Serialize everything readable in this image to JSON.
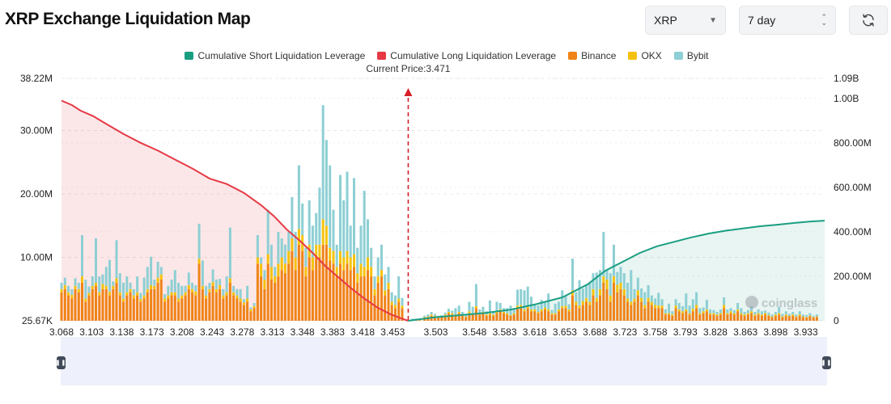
{
  "page": {
    "title": "XRP Exchange Liquidation Map"
  },
  "controls": {
    "coin_select": {
      "value": "XRP"
    },
    "range_select": {
      "value": "7 day"
    },
    "refresh_icon": "refresh-icon"
  },
  "legend": [
    {
      "label": "Cumulative Short Liquidation Leverage",
      "color": "#1a9e82"
    },
    {
      "label": "Cumulative Long Liquidation Leverage",
      "color": "#e53945"
    },
    {
      "label": "Binance",
      "color": "#f08318"
    },
    {
      "label": "OKX",
      "color": "#f5c20b"
    },
    {
      "label": "Bybit",
      "color": "#8dcfd4"
    }
  ],
  "watermark": "coinglass",
  "chart_data": {
    "type": "bar",
    "current_price_label": "Current Price:3.471",
    "current_price": 3.471,
    "x_tick_labels": [
      "3.068",
      "3.103",
      "3.138",
      "3.173",
      "3.208",
      "3.243",
      "3.278",
      "3.313",
      "3.348",
      "3.383",
      "3.418",
      "3.453",
      "3.503",
      "3.548",
      "3.583",
      "3.618",
      "3.653",
      "3.688",
      "3.723",
      "3.758",
      "3.793",
      "3.828",
      "3.863",
      "3.898",
      "3.933"
    ],
    "x_range": [
      3.068,
      3.955
    ],
    "left_axis": {
      "tick_labels": [
        "38.22M",
        "30.00M",
        "20.00M",
        "10.00M",
        "25.67K"
      ],
      "tick_values": [
        38220000,
        30000000,
        20000000,
        10000000,
        25670
      ],
      "range": [
        25670,
        38220000
      ]
    },
    "right_axis": {
      "tick_labels": [
        "1.09B",
        "1.00B",
        "800.00M",
        "600.00M",
        "400.00M",
        "200.00M",
        "0"
      ],
      "tick_values": [
        1090000000,
        1000000000,
        800000000,
        600000000,
        400000000,
        200000000,
        0
      ],
      "range": [
        0,
        1090000000
      ]
    },
    "series_colors": {
      "binance": "#f08318",
      "okx": "#f5c20b",
      "bybit": "#8dcfd4",
      "long": "#e53945",
      "short": "#1a9e82"
    },
    "bars": [
      [
        3.068,
        4.5,
        0.5,
        1.0
      ],
      [
        3.072,
        5.0,
        0.6,
        1.2
      ],
      [
        3.076,
        4.0,
        0.5,
        1.0
      ],
      [
        3.08,
        3.5,
        0.6,
        0.9
      ],
      [
        3.084,
        5.0,
        0.5,
        1.2
      ],
      [
        3.088,
        4.5,
        0.5,
        1.0
      ],
      [
        3.092,
        6.0,
        1.0,
        6.5
      ],
      [
        3.096,
        3.0,
        0.5,
        3.0
      ],
      [
        3.1,
        4.0,
        0.4,
        1.0
      ],
      [
        3.104,
        5.0,
        0.5,
        1.5
      ],
      [
        3.108,
        5.5,
        0.5,
        7.0
      ],
      [
        3.112,
        4.0,
        0.5,
        2.5
      ],
      [
        3.116,
        5.0,
        0.8,
        1.5
      ],
      [
        3.12,
        5.0,
        0.5,
        3.0
      ],
      [
        3.124,
        4.0,
        0.6,
        5.0
      ],
      [
        3.128,
        5.0,
        0.5,
        0.7
      ],
      [
        3.132,
        6.0,
        0.7,
        6.0
      ],
      [
        3.136,
        4.0,
        0.5,
        3.0
      ],
      [
        3.14,
        3.0,
        0.5,
        2.5
      ],
      [
        3.144,
        4.0,
        0.5,
        2.5
      ],
      [
        3.148,
        4.5,
        0.5,
        1.0
      ],
      [
        3.152,
        3.5,
        0.5,
        1.0
      ],
      [
        3.156,
        4.0,
        0.5,
        2.5
      ],
      [
        3.16,
        3.0,
        0.4,
        1.0
      ],
      [
        3.164,
        3.5,
        0.5,
        2.8
      ],
      [
        3.168,
        4.5,
        0.5,
        3.5
      ],
      [
        3.172,
        5.0,
        0.6,
        4.5
      ],
      [
        3.176,
        5.0,
        0.5,
        1.0
      ],
      [
        3.18,
        6.0,
        0.8,
        2.5
      ],
      [
        3.184,
        6.5,
        0.8,
        1.2
      ],
      [
        3.188,
        3.0,
        0.5,
        0.7
      ],
      [
        3.192,
        3.5,
        0.5,
        1.5
      ],
      [
        3.196,
        4.0,
        0.5,
        2.0
      ],
      [
        3.2,
        4.0,
        0.5,
        3.5
      ],
      [
        3.204,
        3.0,
        0.5,
        2.5
      ],
      [
        3.208,
        3.5,
        0.5,
        1.5
      ],
      [
        3.212,
        4.0,
        0.5,
        1.0
      ],
      [
        3.216,
        5.0,
        0.6,
        2.0
      ],
      [
        3.22,
        4.5,
        0.5,
        1.0
      ],
      [
        3.224,
        4.0,
        0.6,
        1.0
      ],
      [
        3.228,
        9.0,
        0.8,
        5.5
      ],
      [
        3.232,
        5.0,
        0.5,
        4.0
      ],
      [
        3.236,
        3.5,
        0.5,
        1.5
      ],
      [
        3.24,
        4.5,
        0.5,
        1.0
      ],
      [
        3.244,
        5.5,
        0.6,
        2.0
      ],
      [
        3.248,
        4.5,
        0.5,
        1.5
      ],
      [
        3.252,
        5.0,
        0.6,
        1.0
      ],
      [
        3.256,
        3.5,
        0.5,
        1.0
      ],
      [
        3.26,
        4.0,
        0.5,
        2.5
      ],
      [
        3.264,
        6.0,
        0.7,
        8.0
      ],
      [
        3.268,
        4.0,
        0.5,
        1.0
      ],
      [
        3.272,
        3.5,
        0.5,
        1.0
      ],
      [
        3.276,
        3.0,
        0.5,
        1.5
      ],
      [
        3.28,
        2.5,
        0.4,
        0.5
      ],
      [
        3.284,
        3.0,
        0.5,
        2.0
      ],
      [
        3.288,
        1.5,
        0.3,
        0.3
      ],
      [
        3.292,
        2.0,
        0.3,
        0.5
      ],
      [
        3.296,
        9.0,
        1.0,
        3.5
      ],
      [
        3.3,
        7.0,
        2.0,
        1.0
      ],
      [
        3.304,
        5.0,
        1.5,
        1.5
      ],
      [
        3.308,
        9.0,
        1.5,
        7.0
      ],
      [
        3.312,
        6.5,
        2.0,
        3.5
      ],
      [
        3.316,
        6.0,
        1.0,
        1.5
      ],
      [
        3.32,
        7.0,
        2.0,
        5.0
      ],
      [
        3.324,
        8.0,
        2.0,
        3.0
      ],
      [
        3.328,
        7.5,
        1.5,
        3.0
      ],
      [
        3.332,
        9.0,
        2.0,
        3.0
      ],
      [
        3.336,
        11.0,
        2.0,
        6.5
      ],
      [
        3.34,
        8.0,
        2.0,
        4.0
      ],
      [
        3.344,
        12.0,
        2.5,
        10.0
      ],
      [
        3.348,
        11.0,
        2.5,
        5.0
      ],
      [
        3.352,
        7.0,
        1.5,
        3.0
      ],
      [
        3.356,
        10.0,
        2.0,
        7.0
      ],
      [
        3.36,
        8.0,
        2.0,
        5.0
      ],
      [
        3.364,
        10.0,
        2.0,
        5.0
      ],
      [
        3.368,
        10.0,
        2.0,
        9.0
      ],
      [
        3.372,
        12.0,
        4.0,
        18.0
      ],
      [
        3.376,
        12.0,
        3.0,
        13.5
      ],
      [
        3.38,
        9.5,
        2.0,
        13.0
      ],
      [
        3.384,
        9.0,
        2.0,
        6.5
      ],
      [
        3.388,
        7.0,
        1.5,
        3.5
      ],
      [
        3.392,
        9.0,
        2.0,
        12.0
      ],
      [
        3.396,
        8.0,
        2.0,
        9.0
      ],
      [
        3.4,
        9.0,
        2.0,
        12.5
      ],
      [
        3.404,
        8.0,
        2.0,
        5.0
      ],
      [
        3.408,
        8.5,
        2.0,
        12.0
      ],
      [
        3.412,
        6.0,
        1.5,
        4.0
      ],
      [
        3.416,
        7.0,
        2.0,
        6.0
      ],
      [
        3.42,
        7.0,
        1.5,
        12.0
      ],
      [
        3.424,
        8.0,
        2.0,
        6.0
      ],
      [
        3.428,
        7.0,
        1.5,
        3.0
      ],
      [
        3.432,
        4.0,
        1.0,
        2.0
      ],
      [
        3.436,
        6.0,
        1.0,
        3.0
      ],
      [
        3.44,
        7.0,
        1.0,
        4.0
      ],
      [
        3.444,
        4.0,
        0.8,
        2.5
      ],
      [
        3.448,
        5.0,
        1.0,
        2.5
      ],
      [
        3.452,
        2.5,
        0.5,
        1.5
      ],
      [
        3.456,
        2.0,
        0.5,
        1.5
      ],
      [
        3.46,
        3.0,
        0.5,
        3.5
      ],
      [
        3.464,
        2.0,
        0.4,
        1.2
      ],
      [
        3.476,
        0.1,
        0.05,
        0.2
      ],
      [
        3.48,
        0.1,
        0.05,
        0.2
      ],
      [
        3.484,
        0.1,
        0.05,
        0.2
      ],
      [
        3.49,
        0.5,
        0.1,
        0.2
      ],
      [
        3.494,
        0.6,
        0.1,
        0.3
      ],
      [
        3.498,
        0.8,
        0.2,
        0.4
      ],
      [
        3.502,
        0.7,
        0.1,
        0.3
      ],
      [
        3.506,
        0.5,
        0.1,
        0.2
      ],
      [
        3.51,
        0.6,
        0.1,
        0.2
      ],
      [
        3.514,
        0.8,
        0.2,
        0.3
      ],
      [
        3.518,
        1.2,
        0.2,
        0.5
      ],
      [
        3.522,
        1.0,
        0.2,
        0.4
      ],
      [
        3.526,
        0.8,
        0.2,
        1.0
      ],
      [
        3.53,
        1.2,
        0.2,
        1.0
      ],
      [
        3.534,
        0.8,
        0.1,
        0.5
      ],
      [
        3.538,
        0.6,
        0.1,
        0.3
      ],
      [
        3.542,
        1.2,
        0.3,
        1.5
      ],
      [
        3.546,
        1.0,
        0.2,
        1.0
      ],
      [
        3.55,
        2.0,
        0.3,
        3.5
      ],
      [
        3.554,
        1.0,
        0.2,
        0.6
      ],
      [
        3.558,
        1.2,
        0.2,
        0.8
      ],
      [
        3.562,
        0.8,
        0.2,
        0.5
      ],
      [
        3.566,
        1.0,
        0.2,
        2.0
      ],
      [
        3.57,
        0.8,
        0.2,
        0.5
      ],
      [
        3.574,
        1.2,
        0.3,
        1.5
      ],
      [
        3.578,
        1.5,
        0.3,
        1.0
      ],
      [
        3.582,
        1.2,
        0.2,
        0.6
      ],
      [
        3.586,
        1.0,
        0.2,
        0.8
      ],
      [
        3.59,
        0.8,
        0.1,
        1.5
      ],
      [
        3.594,
        1.0,
        0.2,
        0.8
      ],
      [
        3.598,
        2.0,
        0.4,
        2.5
      ],
      [
        3.602,
        2.0,
        0.5,
        2.5
      ],
      [
        3.606,
        1.5,
        0.3,
        3.0
      ],
      [
        3.61,
        2.0,
        0.4,
        3.0
      ],
      [
        3.614,
        1.5,
        0.3,
        2.0
      ],
      [
        3.618,
        1.5,
        0.3,
        0.8
      ],
      [
        3.622,
        1.2,
        0.2,
        1.0
      ],
      [
        3.626,
        1.5,
        0.3,
        1.5
      ],
      [
        3.63,
        1.8,
        0.3,
        0.8
      ],
      [
        3.634,
        1.5,
        0.3,
        2.5
      ],
      [
        3.638,
        1.0,
        0.2,
        0.5
      ],
      [
        3.642,
        1.0,
        0.2,
        1.5
      ],
      [
        3.646,
        1.5,
        0.3,
        1.2
      ],
      [
        3.65,
        2.0,
        0.3,
        2.5
      ],
      [
        3.654,
        2.0,
        0.4,
        1.5
      ],
      [
        3.658,
        1.5,
        0.3,
        0.8
      ],
      [
        3.662,
        4.0,
        0.8,
        5.0
      ],
      [
        3.666,
        2.5,
        0.5,
        1.5
      ],
      [
        3.67,
        2.0,
        0.4,
        4.0
      ],
      [
        3.674,
        2.5,
        0.6,
        2.0
      ],
      [
        3.678,
        3.0,
        0.6,
        2.0
      ],
      [
        3.682,
        2.5,
        0.5,
        3.0
      ],
      [
        3.686,
        4.0,
        1.0,
        2.5
      ],
      [
        3.69,
        3.0,
        0.6,
        4.0
      ],
      [
        3.694,
        4.0,
        1.0,
        3.0
      ],
      [
        3.698,
        6.0,
        1.0,
        7.0
      ],
      [
        3.702,
        5.0,
        1.5,
        1.5
      ],
      [
        3.706,
        3.0,
        1.0,
        3.5
      ],
      [
        3.71,
        6.0,
        1.0,
        5.0
      ],
      [
        3.714,
        4.5,
        1.2,
        2.0
      ],
      [
        3.718,
        5.0,
        1.0,
        2.5
      ],
      [
        3.722,
        4.0,
        1.0,
        2.5
      ],
      [
        3.726,
        3.0,
        0.5,
        2.5
      ],
      [
        3.73,
        2.5,
        0.5,
        5.0
      ],
      [
        3.734,
        3.0,
        0.5,
        1.5
      ],
      [
        3.738,
        4.0,
        0.8,
        2.0
      ],
      [
        3.742,
        3.0,
        0.6,
        1.5
      ],
      [
        3.746,
        2.0,
        0.5,
        2.0
      ],
      [
        3.75,
        3.0,
        0.6,
        2.0
      ],
      [
        3.754,
        2.5,
        0.5,
        1.0
      ],
      [
        3.758,
        2.0,
        0.5,
        1.0
      ],
      [
        3.762,
        2.0,
        0.4,
        2.0
      ],
      [
        3.766,
        2.0,
        0.4,
        1.0
      ],
      [
        3.77,
        1.0,
        0.2,
        0.6
      ],
      [
        3.774,
        1.0,
        0.2,
        1.5
      ],
      [
        3.778,
        0.8,
        0.2,
        0.5
      ],
      [
        3.782,
        2.0,
        0.4,
        1.0
      ],
      [
        3.786,
        1.5,
        0.3,
        1.0
      ],
      [
        3.79,
        1.2,
        0.3,
        0.8
      ],
      [
        3.794,
        1.5,
        0.3,
        2.5
      ],
      [
        3.798,
        1.0,
        0.2,
        1.2
      ],
      [
        3.802,
        1.5,
        0.4,
        1.5
      ],
      [
        3.806,
        2.0,
        0.5,
        2.0
      ],
      [
        3.81,
        1.0,
        0.2,
        0.8
      ],
      [
        3.814,
        1.2,
        0.3,
        0.6
      ],
      [
        3.818,
        1.5,
        0.3,
        1.5
      ],
      [
        3.822,
        1.0,
        0.2,
        0.6
      ],
      [
        3.826,
        1.0,
        0.2,
        0.5
      ],
      [
        3.83,
        0.8,
        0.2,
        0.4
      ],
      [
        3.834,
        1.0,
        0.2,
        0.6
      ],
      [
        3.838,
        2.0,
        0.5,
        1.2
      ],
      [
        3.842,
        1.0,
        0.2,
        0.6
      ],
      [
        3.846,
        1.2,
        0.3,
        0.5
      ],
      [
        3.85,
        1.0,
        0.2,
        0.5
      ],
      [
        3.854,
        1.5,
        0.3,
        1.0
      ],
      [
        3.858,
        1.0,
        0.2,
        0.8
      ],
      [
        3.862,
        0.8,
        0.2,
        0.4
      ],
      [
        3.866,
        1.0,
        0.2,
        0.5
      ],
      [
        3.87,
        1.2,
        0.3,
        0.8
      ],
      [
        3.874,
        0.8,
        0.2,
        0.4
      ],
      [
        3.878,
        1.0,
        0.2,
        0.6
      ],
      [
        3.882,
        0.8,
        0.2,
        0.5
      ],
      [
        3.886,
        1.0,
        0.2,
        0.4
      ],
      [
        3.89,
        0.8,
        0.1,
        0.4
      ],
      [
        3.894,
        0.6,
        0.1,
        0.3
      ],
      [
        3.898,
        0.8,
        0.2,
        0.4
      ],
      [
        3.902,
        1.0,
        0.2,
        1.0
      ],
      [
        3.906,
        0.6,
        0.1,
        0.4
      ],
      [
        3.91,
        0.8,
        0.2,
        0.5
      ],
      [
        3.914,
        0.7,
        0.1,
        0.3
      ],
      [
        3.918,
        0.8,
        0.2,
        0.4
      ],
      [
        3.922,
        0.6,
        0.1,
        0.3
      ],
      [
        3.926,
        0.8,
        0.2,
        0.5
      ],
      [
        3.93,
        0.6,
        0.1,
        0.3
      ],
      [
        3.934,
        0.5,
        0.1,
        0.3
      ],
      [
        3.938,
        0.7,
        0.1,
        0.4
      ],
      [
        3.942,
        0.5,
        0.1,
        0.2
      ],
      [
        3.946,
        0.6,
        0.1,
        0.3
      ]
    ],
    "bar_units": "millions; each bar = [price, binance, okx, bybit]",
    "cumulative_long": {
      "x": [
        3.068,
        3.08,
        3.09,
        3.105,
        3.12,
        3.14,
        3.16,
        3.18,
        3.2,
        3.22,
        3.24,
        3.26,
        3.28,
        3.3,
        3.315,
        3.33,
        3.345,
        3.36,
        3.375,
        3.39,
        3.405,
        3.42,
        3.435,
        3.45,
        3.462,
        3.471
      ],
      "y": [
        990000000,
        970000000,
        945000000,
        920000000,
        885000000,
        840000000,
        800000000,
        765000000,
        725000000,
        685000000,
        640000000,
        615000000,
        575000000,
        520000000,
        470000000,
        410000000,
        360000000,
        305000000,
        245000000,
        195000000,
        145000000,
        100000000,
        60000000,
        30000000,
        12000000,
        0
      ]
    },
    "cumulative_short": {
      "x": [
        3.471,
        3.5,
        3.53,
        3.56,
        3.59,
        3.62,
        3.65,
        3.68,
        3.7,
        3.72,
        3.74,
        3.76,
        3.78,
        3.8,
        3.82,
        3.84,
        3.86,
        3.88,
        3.9,
        3.92,
        3.94,
        3.955
      ],
      "y": [
        0,
        15000000,
        25000000,
        35000000,
        50000000,
        75000000,
        105000000,
        165000000,
        225000000,
        265000000,
        305000000,
        335000000,
        355000000,
        375000000,
        392000000,
        405000000,
        415000000,
        425000000,
        432000000,
        440000000,
        447000000,
        450000000
      ]
    },
    "grid": true,
    "legend_position": "top-center"
  }
}
